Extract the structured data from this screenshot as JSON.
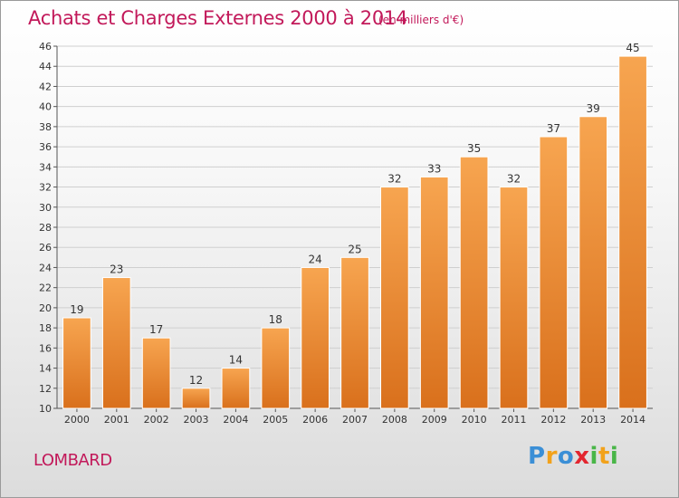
{
  "header": {
    "title": "Achats et Charges Externes 2000 à 2014",
    "subtitle": "(en milliers d'€)"
  },
  "footer": {
    "commune": "LOMBARD",
    "brand": "Proxiti",
    "brand_letters": [
      {
        "char": "P",
        "color": "#3b8fd6"
      },
      {
        "char": "r",
        "color": "#f2a21b"
      },
      {
        "char": "o",
        "color": "#3b8fd6"
      },
      {
        "char": "x",
        "color": "#e3262f"
      },
      {
        "char": "i",
        "color": "#49b648"
      },
      {
        "char": "t",
        "color": "#f2a21b"
      },
      {
        "char": "i",
        "color": "#49b648"
      }
    ]
  },
  "colors": {
    "title": "#c2195a",
    "bar_top": "#f7a550",
    "bar_bottom": "#d9701c",
    "bar_border": "#ffffff",
    "grid": "#cfcfcf"
  },
  "chart_data": {
    "type": "bar",
    "categories": [
      "2000",
      "2001",
      "2002",
      "2003",
      "2004",
      "2005",
      "2006",
      "2007",
      "2008",
      "2009",
      "2010",
      "2011",
      "2012",
      "2013",
      "2014"
    ],
    "values": [
      19,
      23,
      17,
      12,
      14,
      18,
      24,
      25,
      32,
      33,
      35,
      32,
      37,
      39,
      45
    ],
    "ylim": [
      10,
      46
    ],
    "yticks": [
      10,
      12,
      14,
      16,
      18,
      20,
      22,
      24,
      26,
      28,
      30,
      32,
      34,
      36,
      38,
      40,
      42,
      44,
      46
    ],
    "grid": true,
    "xlabel": "",
    "ylabel": ""
  }
}
